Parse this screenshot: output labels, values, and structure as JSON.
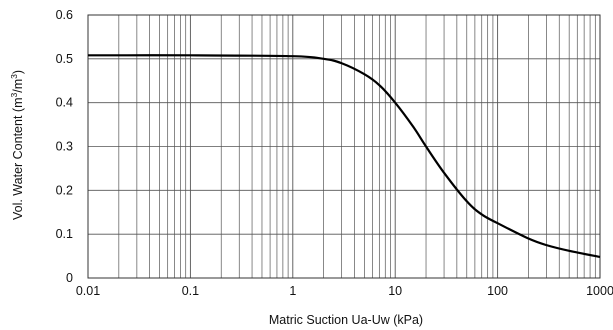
{
  "chart_data": {
    "type": "line",
    "title": "",
    "xlabel": "Matric Suction  Ua-Uw  (kPa)",
    "ylabel": {
      "pre": "Vol. Water Content (m",
      "sup1": "3",
      "mid": "/m",
      "sup2": "3",
      "post": ")"
    },
    "x_scale": "log",
    "xlim": [
      0.01,
      1000
    ],
    "ylim": [
      0,
      0.6
    ],
    "x_ticks": [
      "0.01",
      "0.1",
      "1",
      "10",
      "100",
      "1000"
    ],
    "y_ticks": [
      "0",
      "0.1",
      "0.2",
      "0.3",
      "0.4",
      "0.5",
      "0.6"
    ],
    "grid": true,
    "legend": "none",
    "colors": {
      "line": "#000000",
      "grid": "#555555",
      "frame": "#333333"
    },
    "series": [
      {
        "x": [
          0.01,
          0.1,
          1,
          2,
          3,
          5,
          7,
          10,
          15,
          20,
          30,
          50,
          70,
          100,
          200,
          300,
          500,
          1000
        ],
        "y": [
          0.508,
          0.508,
          0.506,
          0.5,
          0.49,
          0.465,
          0.44,
          0.4,
          0.345,
          0.3,
          0.24,
          0.175,
          0.145,
          0.125,
          0.09,
          0.075,
          0.062,
          0.048
        ]
      }
    ]
  }
}
